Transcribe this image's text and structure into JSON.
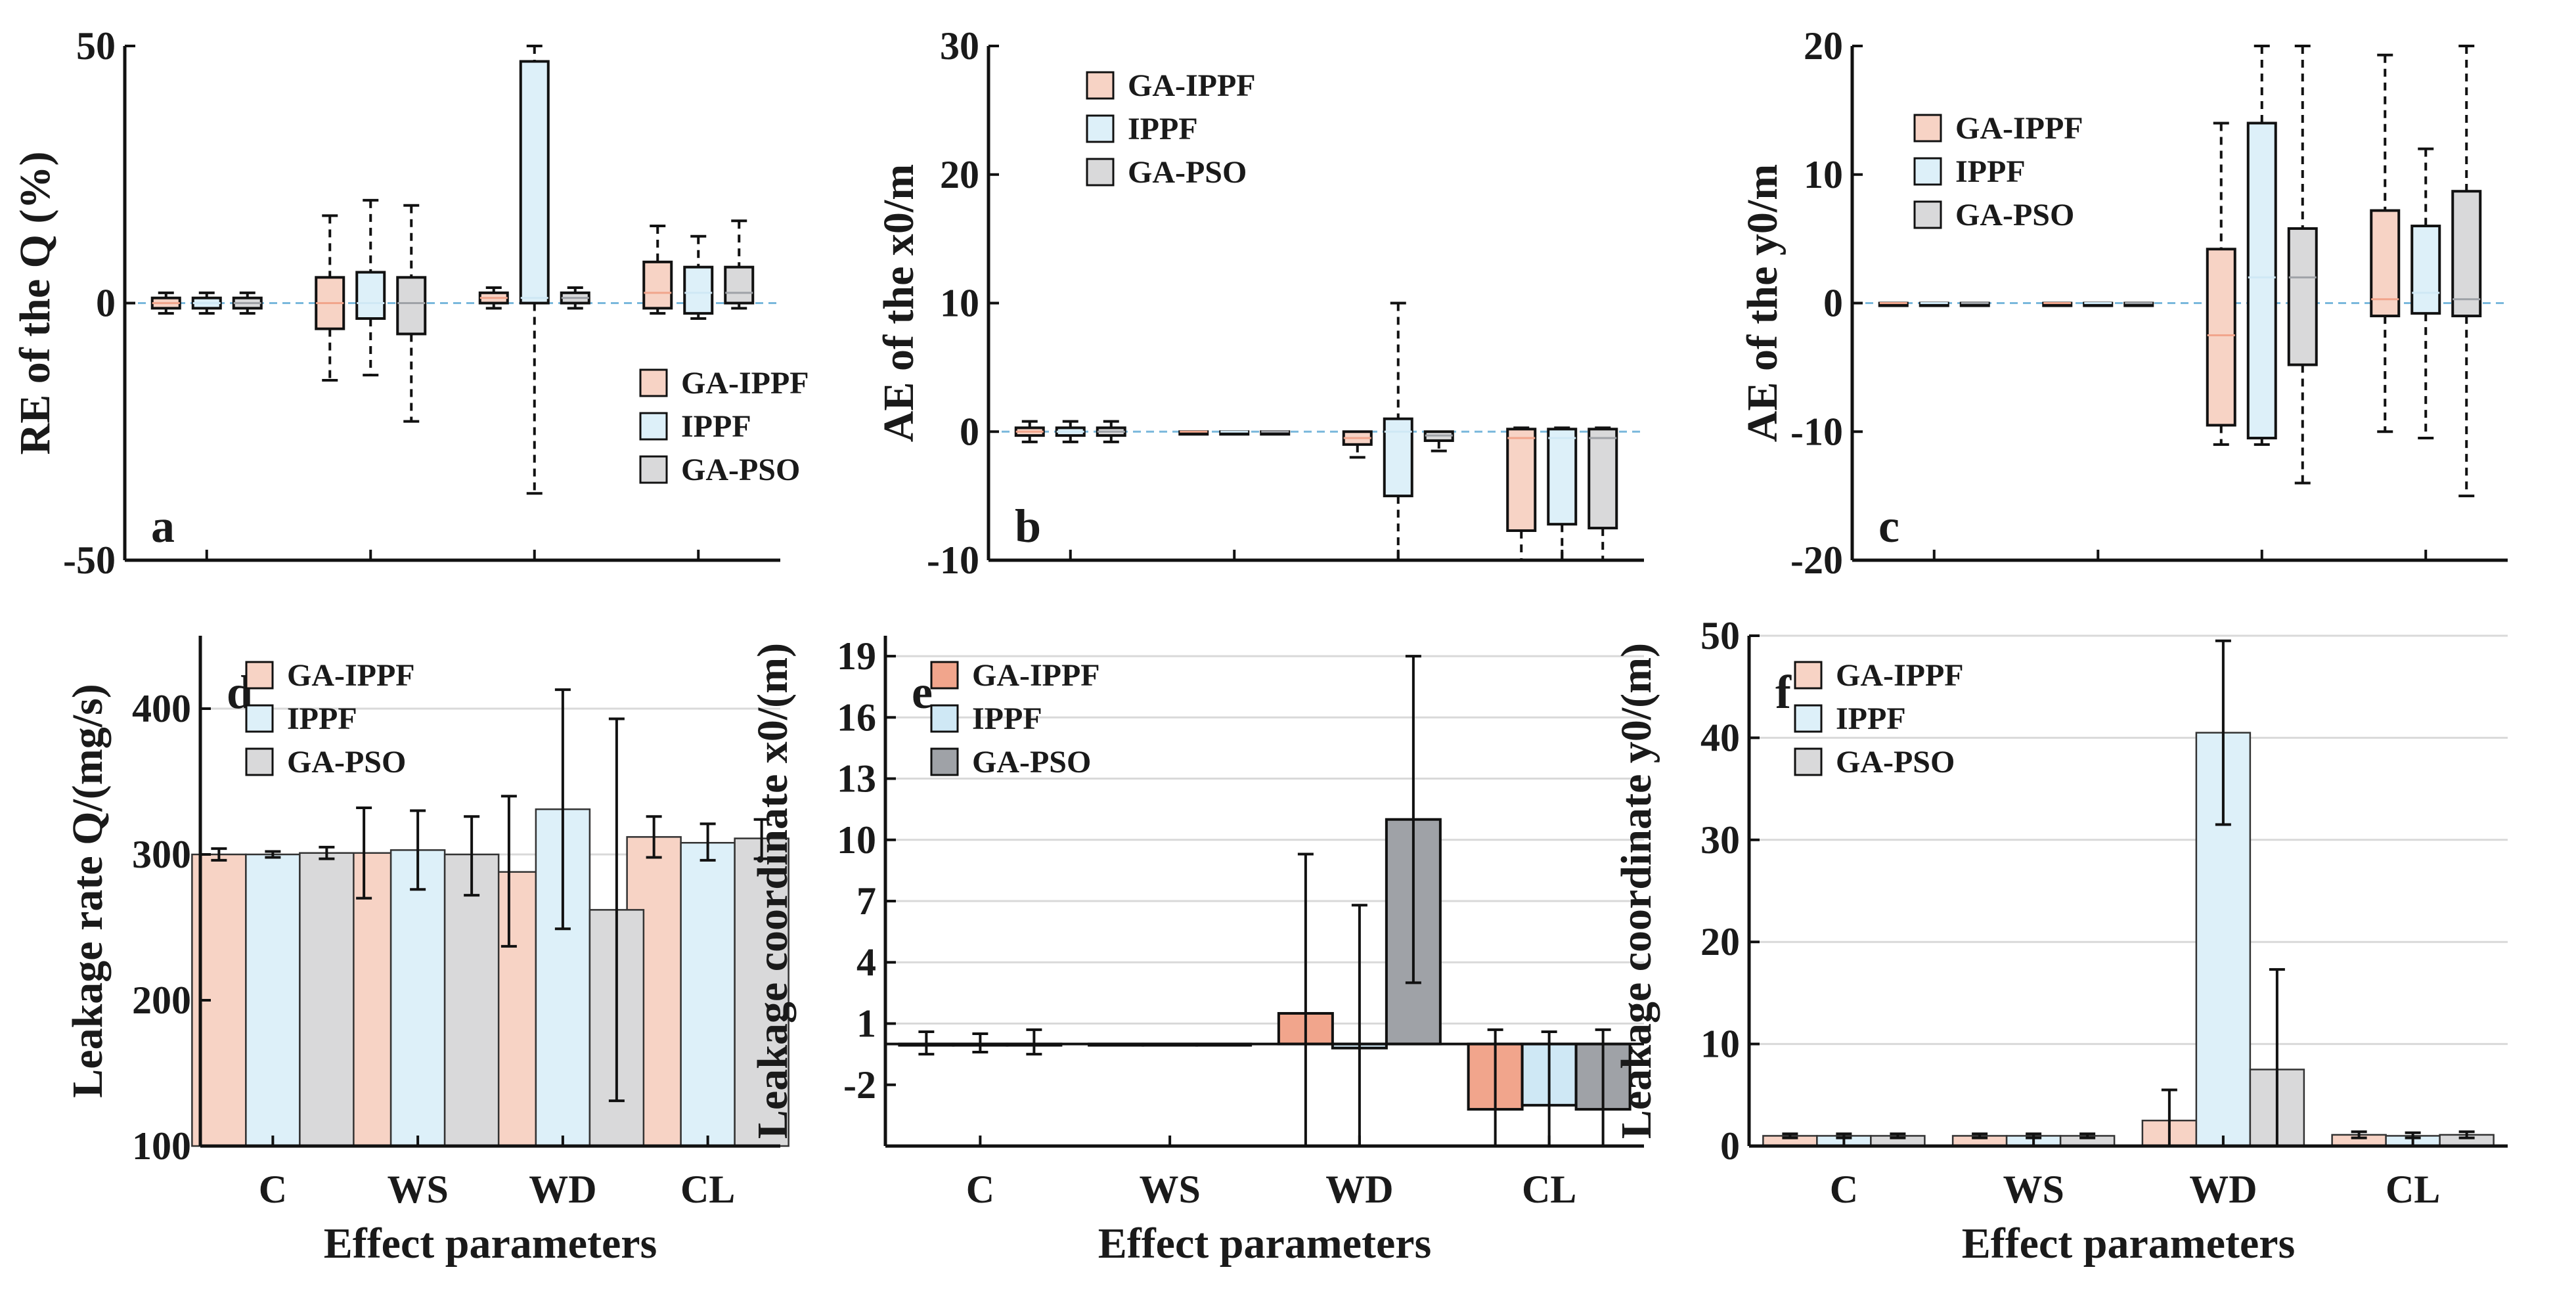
{
  "series_names": [
    "GA-IPPF",
    "IPPF",
    "GA-PSO"
  ],
  "colors": {
    "GA-IPPF": "#f7d3c5",
    "IPPF": "#ddf0f9",
    "GA-PSO": "#d9d9da",
    "GA-IPPF-e": "#f1a58c",
    "IPPF-e": "#cfe8f5",
    "GA-PSO-e": "#9fa2a7",
    "zero_line": "#7ab8dc"
  },
  "chart_data": [
    {
      "id": "a",
      "type": "box",
      "panel_label": "a",
      "ylabel": "RE of the Q (%)",
      "ylim": [
        -50,
        50
      ],
      "yticks": [
        -50,
        0,
        50
      ],
      "categories": [
        "C",
        "WS",
        "WD",
        "CL"
      ],
      "show_category_labels": false,
      "legend": "bottom-right",
      "boxes": [
        [
          {
            "q1": -1,
            "med": 0,
            "q3": 1,
            "lo": -2,
            "hi": 2
          },
          {
            "q1": -1,
            "med": 0,
            "q3": 1,
            "lo": -2,
            "hi": 2
          },
          {
            "q1": -1,
            "med": 0,
            "q3": 1,
            "lo": -2,
            "hi": 2
          }
        ],
        [
          {
            "q1": -5,
            "med": 0,
            "q3": 5,
            "lo": -15,
            "hi": 17
          },
          {
            "q1": -3,
            "med": 0,
            "q3": 6,
            "lo": -14,
            "hi": 20
          },
          {
            "q1": -6,
            "med": 0,
            "q3": 5,
            "lo": -23,
            "hi": 19
          }
        ],
        [
          {
            "q1": 0,
            "med": 1,
            "q3": 2,
            "lo": -1,
            "hi": 3
          },
          {
            "q1": 0,
            "med": 1,
            "q3": 47,
            "lo": -37,
            "hi": 50
          },
          {
            "q1": 0,
            "med": 1,
            "q3": 2,
            "lo": -1,
            "hi": 3
          }
        ],
        [
          {
            "q1": -1,
            "med": 2,
            "q3": 8,
            "lo": -2,
            "hi": 15
          },
          {
            "q1": -2,
            "med": 2,
            "q3": 7,
            "lo": -3,
            "hi": 13
          },
          {
            "q1": 0,
            "med": 2,
            "q3": 7,
            "lo": -1,
            "hi": 16
          }
        ]
      ]
    },
    {
      "id": "b",
      "type": "box",
      "panel_label": "b",
      "ylabel": "AE of the x0/m",
      "ylim": [
        -10,
        30
      ],
      "yticks": [
        -10,
        0,
        10,
        20,
        30
      ],
      "categories": [
        "C",
        "WS",
        "WD",
        "CL"
      ],
      "show_category_labels": false,
      "legend": "top-left",
      "boxes": [
        [
          {
            "q1": -0.3,
            "med": 0,
            "q3": 0.3,
            "lo": -0.8,
            "hi": 0.8
          },
          {
            "q1": -0.3,
            "med": 0,
            "q3": 0.3,
            "lo": -0.8,
            "hi": 0.8
          },
          {
            "q1": -0.3,
            "med": 0,
            "q3": 0.3,
            "lo": -0.8,
            "hi": 0.8
          }
        ],
        [
          {
            "q1": 0,
            "med": 0,
            "q3": 0,
            "lo": 0,
            "hi": 0
          },
          {
            "q1": 0,
            "med": 0,
            "q3": 0,
            "lo": 0,
            "hi": 0
          },
          {
            "q1": 0,
            "med": 0,
            "q3": 0,
            "lo": 0,
            "hi": 0
          }
        ],
        [
          {
            "q1": -1,
            "med": -0.5,
            "q3": 0,
            "lo": -2,
            "hi": 0
          },
          {
            "q1": -5,
            "med": 0,
            "q3": 1,
            "lo": -10,
            "hi": 10
          },
          {
            "q1": -0.7,
            "med": -0.3,
            "q3": 0,
            "lo": -1.5,
            "hi": 0
          }
        ],
        [
          {
            "q1": -7.7,
            "med": -0.5,
            "q3": 0.2,
            "lo": -10,
            "hi": 0.3
          },
          {
            "q1": -7.2,
            "med": -0.5,
            "q3": 0.2,
            "lo": -10,
            "hi": 0.3
          },
          {
            "q1": -7.5,
            "med": -0.5,
            "q3": 0.2,
            "lo": -10,
            "hi": 0.3
          }
        ]
      ]
    },
    {
      "id": "c",
      "type": "box",
      "panel_label": "c",
      "ylabel": "AE of the y0/m",
      "ylim": [
        -20,
        20
      ],
      "yticks": [
        -20,
        -10,
        0,
        10,
        20
      ],
      "categories": [
        "C",
        "WS",
        "WD",
        "CL"
      ],
      "show_category_labels": false,
      "legend": "top-left",
      "boxes": [
        [
          {
            "q1": 0,
            "med": 0,
            "q3": 0,
            "lo": 0,
            "hi": 0
          },
          {
            "q1": 0,
            "med": 0,
            "q3": 0,
            "lo": 0,
            "hi": 0
          },
          {
            "q1": 0,
            "med": 0,
            "q3": 0,
            "lo": 0,
            "hi": 0
          }
        ],
        [
          {
            "q1": 0,
            "med": 0,
            "q3": 0,
            "lo": 0,
            "hi": 0
          },
          {
            "q1": 0,
            "med": 0,
            "q3": 0,
            "lo": 0,
            "hi": 0
          },
          {
            "q1": 0,
            "med": 0,
            "q3": 0,
            "lo": 0,
            "hi": 0
          }
        ],
        [
          {
            "q1": -9.5,
            "med": -2.5,
            "q3": 4.2,
            "lo": -11,
            "hi": 14
          },
          {
            "q1": -10.5,
            "med": 2,
            "q3": 14,
            "lo": -11,
            "hi": 20
          },
          {
            "q1": -4.8,
            "med": 2,
            "q3": 5.8,
            "lo": -14,
            "hi": 20
          }
        ],
        [
          {
            "q1": -1,
            "med": 0.3,
            "q3": 7.2,
            "lo": -10,
            "hi": 19.3
          },
          {
            "q1": -0.8,
            "med": 0.8,
            "q3": 6,
            "lo": -10.5,
            "hi": 12
          },
          {
            "q1": -1,
            "med": 0.3,
            "q3": 8.7,
            "lo": -15,
            "hi": 20
          }
        ]
      ]
    },
    {
      "id": "d",
      "type": "bar",
      "panel_label": "d",
      "ylabel": "Leakage rate Q/(mg/s)",
      "xlabel": "Effect parameters",
      "ylim": [
        100,
        450
      ],
      "yticks": [
        100,
        200,
        300,
        400
      ],
      "ygrid": [
        200,
        300,
        400
      ],
      "categories": [
        "C",
        "WS",
        "WD",
        "CL"
      ],
      "show_category_labels": true,
      "legend": "top-left",
      "strong_edges": false,
      "series": [
        {
          "name": "GA-IPPF",
          "values": [
            300,
            301,
            288,
            312
          ],
          "err_lo": [
            296,
            270,
            237,
            298
          ],
          "err_hi": [
            304,
            332,
            340,
            326
          ]
        },
        {
          "name": "IPPF",
          "values": [
            300,
            303,
            331,
            308
          ],
          "err_lo": [
            298,
            276,
            249,
            296
          ],
          "err_hi": [
            302,
            330,
            413,
            321
          ]
        },
        {
          "name": "GA-PSO",
          "values": [
            301,
            300,
            262,
            311
          ],
          "err_lo": [
            297,
            272,
            131,
            297
          ],
          "err_hi": [
            305,
            326,
            393,
            324
          ]
        }
      ]
    },
    {
      "id": "e",
      "type": "bar",
      "panel_label": "e",
      "ylabel": "Leakage coordinate x0/(m)",
      "xlabel": "Effect parameters",
      "ylim": [
        -5,
        20
      ],
      "yticks": [
        -2,
        1,
        4,
        7,
        10,
        13,
        16,
        19
      ],
      "ygrid": [
        1,
        4,
        7,
        10,
        13,
        16,
        19
      ],
      "baseline": 0,
      "categories": [
        "C",
        "WS",
        "WD",
        "CL"
      ],
      "show_category_labels": true,
      "legend": "top-left",
      "strong_edges": true,
      "series": [
        {
          "name": "GA-IPPF",
          "values": [
            0,
            0,
            1.5,
            -3.2
          ],
          "err_lo": [
            -0.5,
            0,
            -5,
            -5
          ],
          "err_hi": [
            0.6,
            0,
            9.3,
            0.7
          ]
        },
        {
          "name": "IPPF",
          "values": [
            0,
            0,
            -0.2,
            -3
          ],
          "err_lo": [
            -0.4,
            0,
            -5,
            -5
          ],
          "err_hi": [
            0.5,
            0,
            6.8,
            0.6
          ]
        },
        {
          "name": "GA-PSO",
          "values": [
            0,
            0,
            11,
            -3.2
          ],
          "err_lo": [
            -0.5,
            0,
            3,
            -5
          ],
          "err_hi": [
            0.7,
            0,
            19,
            0.7
          ]
        }
      ]
    },
    {
      "id": "f",
      "type": "bar",
      "panel_label": "f",
      "ylabel": "Leakage coordinate y0/(m)",
      "xlabel": "Effect parameters",
      "ylim": [
        0,
        50
      ],
      "yticks": [
        0,
        10,
        20,
        30,
        40,
        50
      ],
      "ygrid": [
        10,
        20,
        30,
        40,
        50
      ],
      "categories": [
        "C",
        "WS",
        "WD",
        "CL"
      ],
      "show_category_labels": true,
      "legend": "top-left",
      "strong_edges": false,
      "series": [
        {
          "name": "GA-IPPF",
          "values": [
            1,
            1,
            2.5,
            1.1
          ],
          "err_lo": [
            0.8,
            0.8,
            0,
            0.8
          ],
          "err_hi": [
            1.2,
            1.2,
            5.5,
            1.4
          ]
        },
        {
          "name": "IPPF",
          "values": [
            1,
            1,
            40.5,
            1
          ],
          "err_lo": [
            0.8,
            0.8,
            31.5,
            0.8
          ],
          "err_hi": [
            1.2,
            1.2,
            49.5,
            1.3
          ]
        },
        {
          "name": "GA-PSO",
          "values": [
            1,
            1,
            7.5,
            1.1
          ],
          "err_lo": [
            0.8,
            0.8,
            0,
            0.8
          ],
          "err_hi": [
            1.2,
            1.2,
            17.3,
            1.4
          ]
        }
      ]
    }
  ]
}
